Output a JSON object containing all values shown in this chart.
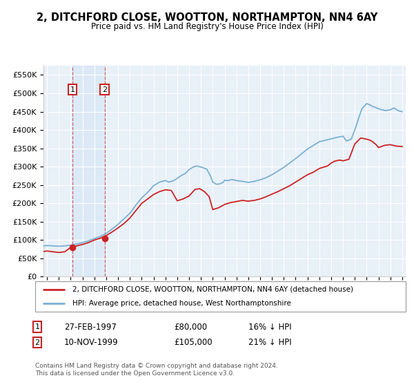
{
  "title": "2, DITCHFORD CLOSE, WOOTTON, NORTHAMPTON, NN4 6AY",
  "subtitle": "Price paid vs. HM Land Registry's House Price Index (HPI)",
  "sale1_date": 1997.15,
  "sale1_price": 80000,
  "sale2_date": 1999.87,
  "sale2_price": 105000,
  "legend_line1": "2, DITCHFORD CLOSE, WOOTTON, NORTHAMPTON, NN4 6AY (detached house)",
  "legend_line2": "HPI: Average price, detached house, West Northamptonshire",
  "table_row1_num": "1",
  "table_row1_date": "27-FEB-1997",
  "table_row1_price": "£80,000",
  "table_row1_hpi": "16% ↓ HPI",
  "table_row2_num": "2",
  "table_row2_date": "10-NOV-1999",
  "table_row2_price": "£105,000",
  "table_row2_hpi": "21% ↓ HPI",
  "footer": "Contains HM Land Registry data © Crown copyright and database right 2024.\nThis data is licensed under the Open Government Licence v3.0.",
  "red_color": "#cc2222",
  "blue_color": "#7ab0d4",
  "background_color": "#e8f0f8",
  "plot_bg": "#ffffff",
  "grid_color": "#ffffff",
  "xmin": 1994.7,
  "xmax": 2025.3,
  "ymin": 0,
  "ymax": 575000,
  "years_hpi": [
    1994.5,
    1995.0,
    1995.5,
    1996.0,
    1996.5,
    1997.0,
    1997.5,
    1998.0,
    1998.5,
    1999.0,
    1999.5,
    2000.0,
    2000.5,
    2001.0,
    2001.5,
    2002.0,
    2002.5,
    2003.0,
    2003.5,
    2004.0,
    2004.5,
    2005.0,
    2005.3,
    2005.7,
    2006.0,
    2006.3,
    2006.7,
    2007.0,
    2007.3,
    2007.6,
    2007.9,
    2008.2,
    2008.5,
    2008.8,
    2009.0,
    2009.3,
    2009.6,
    2009.9,
    2010.0,
    2010.3,
    2010.6,
    2010.9,
    2011.0,
    2011.5,
    2012.0,
    2012.5,
    2013.0,
    2013.5,
    2014.0,
    2014.5,
    2015.0,
    2015.5,
    2016.0,
    2016.5,
    2017.0,
    2017.5,
    2018.0,
    2018.5,
    2019.0,
    2019.5,
    2020.0,
    2020.3,
    2020.7,
    2021.0,
    2021.3,
    2021.6,
    2022.0,
    2022.3,
    2022.5,
    2022.7,
    2023.0,
    2023.3,
    2023.6,
    2024.0,
    2024.3,
    2024.7,
    2025.0
  ],
  "hpi_values": [
    83000,
    85000,
    84000,
    83000,
    84000,
    86000,
    89000,
    93000,
    98000,
    104000,
    110000,
    118000,
    130000,
    143000,
    158000,
    173000,
    195000,
    215000,
    230000,
    248000,
    258000,
    262000,
    258000,
    262000,
    268000,
    275000,
    282000,
    292000,
    298000,
    302000,
    300000,
    297000,
    293000,
    275000,
    258000,
    252000,
    253000,
    258000,
    263000,
    262000,
    265000,
    263000,
    262000,
    260000,
    257000,
    260000,
    264000,
    270000,
    278000,
    288000,
    298000,
    310000,
    322000,
    335000,
    348000,
    358000,
    368000,
    372000,
    376000,
    380000,
    383000,
    370000,
    375000,
    400000,
    430000,
    458000,
    472000,
    468000,
    464000,
    462000,
    458000,
    455000,
    453000,
    455000,
    460000,
    452000,
    450000
  ],
  "years_red": [
    1994.5,
    1995.0,
    1995.5,
    1996.0,
    1996.5,
    1997.0,
    1997.5,
    1998.0,
    1998.5,
    1999.0,
    1999.5,
    2000.0,
    2000.5,
    2001.0,
    2001.5,
    2002.0,
    2002.5,
    2003.0,
    2003.5,
    2004.0,
    2004.5,
    2005.0,
    2005.5,
    2006.0,
    2006.5,
    2007.0,
    2007.5,
    2007.9,
    2008.3,
    2008.7,
    2009.0,
    2009.5,
    2010.0,
    2010.5,
    2011.0,
    2011.5,
    2012.0,
    2012.5,
    2013.0,
    2013.5,
    2014.0,
    2014.5,
    2015.0,
    2015.5,
    2016.0,
    2016.5,
    2017.0,
    2017.5,
    2018.0,
    2018.3,
    2018.7,
    2019.0,
    2019.3,
    2019.7,
    2020.0,
    2020.5,
    2021.0,
    2021.5,
    2022.0,
    2022.3,
    2022.5,
    2022.8,
    2023.0,
    2023.5,
    2024.0,
    2024.5,
    2025.0
  ],
  "red_values": [
    68000,
    70000,
    68000,
    66000,
    68000,
    80000,
    84000,
    88000,
    93000,
    100000,
    105000,
    112000,
    122000,
    133000,
    145000,
    160000,
    180000,
    200000,
    212000,
    224000,
    232000,
    237000,
    235000,
    207000,
    212000,
    220000,
    238000,
    240000,
    232000,
    218000,
    183000,
    188000,
    197000,
    202000,
    205000,
    208000,
    206000,
    208000,
    212000,
    218000,
    225000,
    232000,
    240000,
    248000,
    258000,
    268000,
    278000,
    285000,
    295000,
    298000,
    302000,
    310000,
    315000,
    318000,
    316000,
    320000,
    362000,
    378000,
    375000,
    372000,
    368000,
    360000,
    352000,
    358000,
    360000,
    356000,
    355000
  ]
}
